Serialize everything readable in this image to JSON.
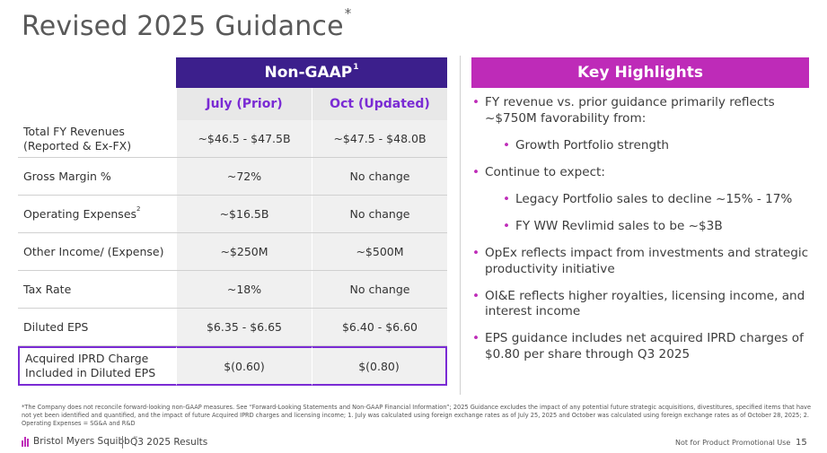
{
  "slide": {
    "title": "Revised 2025 Guidance",
    "title_mark": "*"
  },
  "table": {
    "group_header": "Non-GAAP",
    "group_header_sup": "1",
    "columns": [
      "July (Prior)",
      "Oct (Updated)"
    ],
    "rows": [
      {
        "label": "Total FY Revenues (Reported & Ex-FX)",
        "label_sup": "",
        "values": [
          "~$46.5 - $47.5B",
          "~$47.5 - $48.0B"
        ]
      },
      {
        "label": "Gross Margin %",
        "label_sup": "",
        "values": [
          "~72%",
          "No change"
        ]
      },
      {
        "label": "Operating Expenses",
        "label_sup": "2",
        "values": [
          "~$16.5B",
          "No change"
        ]
      },
      {
        "label": "Other Income/ (Expense)",
        "label_sup": "",
        "values": [
          "~$250M",
          "~$500M"
        ]
      },
      {
        "label": "Tax Rate",
        "label_sup": "",
        "values": [
          "~18%",
          "No change"
        ]
      },
      {
        "label": "Diluted EPS",
        "label_sup": "",
        "values": [
          "$6.35 - $6.65",
          "$6.40 - $6.60"
        ]
      },
      {
        "label": "Acquired IPRD Charge Included in Diluted EPS",
        "label_sup": "",
        "values": [
          "$(0.60)",
          "$(0.80)"
        ]
      }
    ]
  },
  "highlights": {
    "header": "Key Highlights",
    "items": [
      {
        "level": 1,
        "text": "FY revenue vs. prior guidance primarily reflects ~$750M favorability from:"
      },
      {
        "level": 2,
        "text": "Growth Portfolio strength"
      },
      {
        "level": 1,
        "text": "Continue to expect:"
      },
      {
        "level": 2,
        "text": "Legacy Portfolio sales to decline ~15% - 17%"
      },
      {
        "level": 2,
        "text": "FY WW Revlimid sales to be ~$3B"
      },
      {
        "level": 1,
        "text": "OpEx reflects impact from investments and strategic productivity initiative"
      },
      {
        "level": 1,
        "text": "OI&E reflects higher royalties, licensing income, and interest income"
      },
      {
        "level": 1,
        "text": "EPS guidance includes net acquired IPRD charges of $0.80 per share through Q3 2025"
      }
    ],
    "bullet": "•"
  },
  "footnote": "*The Company does not reconcile forward-looking non-GAAP measures. See “Forward-Looking Statements and Non-GAAP Financial Information”; 2025 Guidance excludes the impact of any potential future strategic acquisitions, divestitures, specified items that have not yet been identified and quantified, and the impact of future Acquired IPRD charges and licensing income; 1. July was calculated using foreign exchange rates as of July 25, 2025 and October was calculated using foreign exchange rates as of October 28, 2025; 2. Operating Expenses = SG&A and R&D",
  "footer": {
    "company": "Bristol Myers Squibb",
    "company_mark": "™",
    "deck": "Q3 2025 Results",
    "notice": "Not for Product Promotional Use",
    "page": "15"
  },
  "colors": {
    "table_header_bg": "#3c1f8c",
    "highlights_header_bg": "#be2bb8",
    "column_header_text": "#7a2bd4",
    "bullet": "#be2bb8"
  }
}
